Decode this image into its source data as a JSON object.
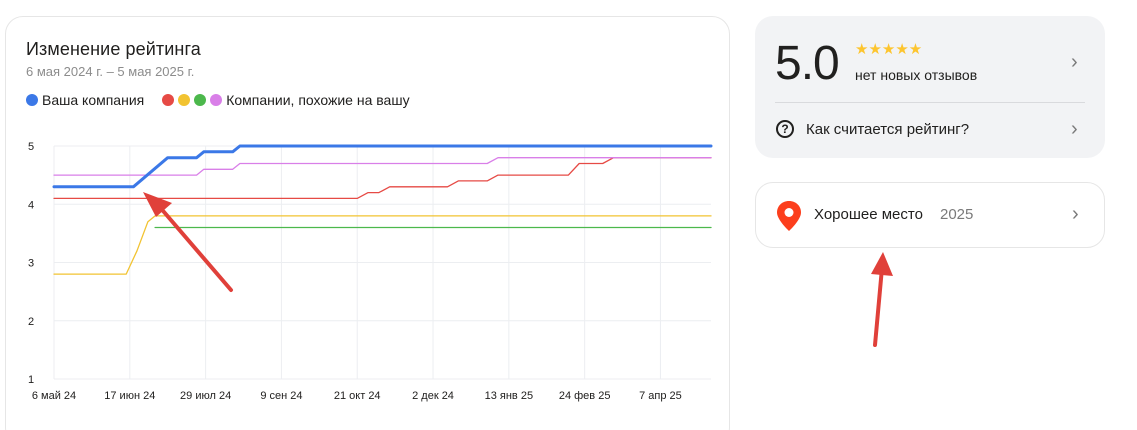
{
  "chart_card": {
    "title": "Изменение рейтинга",
    "subtitle": "6 мая 2024 г. – 5 мая 2025 г.",
    "legend": {
      "own_label": "Ваша компания",
      "similar_label": "Компании, похожие на вашу"
    }
  },
  "chart_data": {
    "type": "line",
    "title": "Изменение рейтинга",
    "subtitle": "6 мая 2024 г. – 5 мая 2025 г.",
    "x_domain": [
      "2024-05-06",
      "2025-05-05"
    ],
    "x_ticks": [
      "6 май 24",
      "17 июн 24",
      "29 июл 24",
      "9 сен 24",
      "21 окт 24",
      "2 дек 24",
      "13 янв 25",
      "24 фев 25",
      "7 апр 25"
    ],
    "x_tick_dates": [
      "2024-05-06",
      "2024-06-17",
      "2024-07-29",
      "2024-09-09",
      "2024-10-21",
      "2024-12-02",
      "2025-01-13",
      "2025-02-24",
      "2025-04-07"
    ],
    "ylim": [
      1,
      5
    ],
    "y_ticks": [
      1,
      2,
      3,
      4,
      5
    ],
    "grid": true,
    "legend_position": "top-left",
    "series": [
      {
        "name": "Ваша компания",
        "color": "#3b78e7",
        "points": [
          [
            "2024-05-06",
            4.3
          ],
          [
            "2024-06-19",
            4.3
          ],
          [
            "2024-07-08",
            4.8
          ],
          [
            "2024-07-24",
            4.8
          ],
          [
            "2024-07-28",
            4.9
          ],
          [
            "2024-08-13",
            4.9
          ],
          [
            "2024-08-17",
            5.0
          ],
          [
            "2025-05-05",
            5.0
          ]
        ]
      },
      {
        "color": "#e64a45",
        "points": [
          [
            "2024-05-06",
            4.1
          ],
          [
            "2024-10-21",
            4.1
          ],
          [
            "2024-10-27",
            4.2
          ],
          [
            "2024-11-02",
            4.2
          ],
          [
            "2024-11-08",
            4.3
          ],
          [
            "2024-12-10",
            4.3
          ],
          [
            "2024-12-16",
            4.4
          ],
          [
            "2025-01-01",
            4.4
          ],
          [
            "2025-01-07",
            4.5
          ],
          [
            "2025-02-15",
            4.5
          ],
          [
            "2025-02-21",
            4.7
          ],
          [
            "2025-03-06",
            4.7
          ],
          [
            "2025-03-12",
            4.8
          ],
          [
            "2025-05-05",
            4.8
          ]
        ]
      },
      {
        "color": "#f2c331",
        "points": [
          [
            "2024-05-06",
            2.8
          ],
          [
            "2024-06-15",
            2.8
          ],
          [
            "2024-06-21",
            3.2
          ],
          [
            "2024-06-27",
            3.7
          ],
          [
            "2024-07-01",
            3.8
          ],
          [
            "2025-05-05",
            3.8
          ]
        ]
      },
      {
        "color": "#4cb84c",
        "points": [
          [
            "2024-07-01",
            3.6
          ],
          [
            "2025-05-05",
            3.6
          ]
        ]
      },
      {
        "color": "#d97fe8",
        "points": [
          [
            "2024-05-06",
            4.5
          ],
          [
            "2024-07-24",
            4.5
          ],
          [
            "2024-07-28",
            4.6
          ],
          [
            "2024-08-13",
            4.6
          ],
          [
            "2024-08-17",
            4.7
          ],
          [
            "2025-01-01",
            4.7
          ],
          [
            "2025-01-07",
            4.8
          ],
          [
            "2025-05-05",
            4.8
          ]
        ]
      }
    ]
  },
  "rating_card": {
    "rating": "5.0",
    "stars": "★★★★★",
    "reviews_text": "нет новых отзывов",
    "how_calculated": "Как считается рейтинг?"
  },
  "place_card": {
    "label": "Хорошее место",
    "year": "2025"
  },
  "colors": {
    "own": "#3b78e7",
    "red": "#e64a45",
    "yellow": "#f2c331",
    "green": "#4cb84c",
    "purple": "#d97fe8",
    "arrow": "#e0403a",
    "pin": "#fc3f1d"
  },
  "icons": {
    "question": "question-circle-icon",
    "chevron": "chevron-right-icon",
    "pin": "map-pin-icon"
  }
}
